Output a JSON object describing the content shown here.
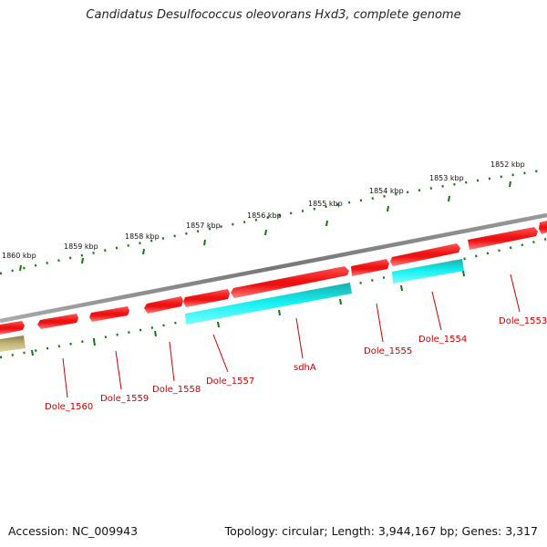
{
  "title": "Candidatus Desulfococcus oleovorans Hxd3, complete genome",
  "footer": {
    "accession": "Accession: NC_009943",
    "topology": "Topology: circular; Length: 3,944,167 bp; Genes: 3,317"
  },
  "colors": {
    "forward_gene": "#ee1111",
    "reverse_gene": "#ee1111",
    "highlight_gene": "#11dddd",
    "other_feature": "#b5a96a",
    "backbone": "#888888",
    "ruler_tick": "#117711",
    "label": "#cc0000"
  },
  "ruler_labels": [
    "1860 kbp",
    "1859 kbp",
    "1858 kbp",
    "1857 kbp",
    "1856 kbp",
    "1855 kbp",
    "1854 kbp",
    "1853 kbp",
    "1852 kbp"
  ],
  "gene_labels": [
    "Dole_1560",
    "Dole_1559",
    "Dole_1558",
    "Dole_1557",
    "sdhA",
    "Dole_1555",
    "Dole_1554",
    "Dole_1553"
  ]
}
